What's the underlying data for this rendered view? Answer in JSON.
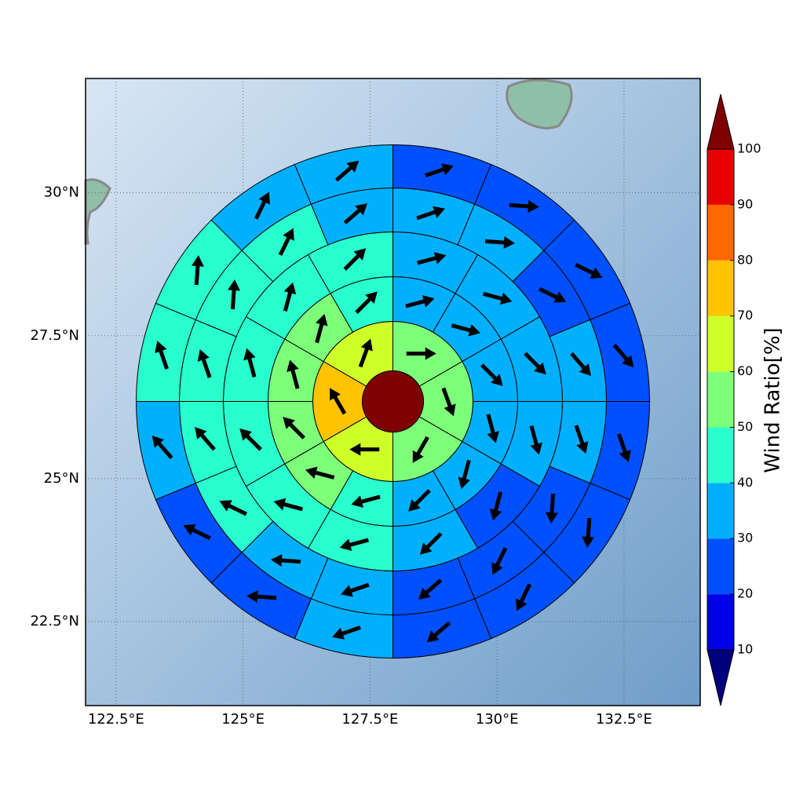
{
  "chart_data": {
    "type": "polar-sectors",
    "xlim": [
      121.9,
      134.0
    ],
    "ylim": [
      21.03,
      32.0
    ],
    "xticks": [
      {
        "value": 122.5,
        "label": "122.5°E"
      },
      {
        "value": 125,
        "label": "125°E"
      },
      {
        "value": 127.5,
        "label": "127.5°E"
      },
      {
        "value": 130,
        "label": "130°E"
      },
      {
        "value": 132.5,
        "label": "132.5°E"
      }
    ],
    "yticks": [
      {
        "value": 22.5,
        "label": "22.5°N"
      },
      {
        "value": 25,
        "label": "25°N"
      },
      {
        "value": 27.5,
        "label": "27.5°N"
      },
      {
        "value": 30,
        "label": "30°N"
      }
    ],
    "grid": true,
    "center_lon": 127.95,
    "center_lat": 26.35,
    "center_value": 105,
    "rings": [
      {
        "values": [
          55,
          55,
          55,
          65,
          75,
          65
        ],
        "directions": [
          90,
          160,
          210,
          270,
          330,
          20
        ]
      },
      {
        "values": [
          35,
          35,
          35,
          35,
          35,
          35,
          45,
          55,
          55,
          55,
          55,
          45
        ],
        "directions": [
          75,
          105,
          135,
          165,
          195,
          225,
          255,
          285,
          315,
          345,
          15,
          45
        ]
      },
      {
        "values": [
          35,
          35,
          35,
          35,
          25,
          35,
          45,
          45,
          45,
          45,
          45,
          45
        ],
        "directions": [
          75,
          105,
          135,
          165,
          195,
          225,
          255,
          285,
          315,
          345,
          15,
          45
        ]
      },
      {
        "values": [
          35,
          35,
          25,
          35,
          35,
          25,
          25,
          25,
          35,
          35,
          45,
          45,
          45,
          45,
          45,
          35
        ],
        "directions": [
          71,
          94,
          116,
          139,
          161,
          184,
          206,
          229,
          251,
          274,
          296,
          319,
          341,
          4,
          26,
          49
        ]
      },
      {
        "values": [
          25,
          25,
          25,
          25,
          25,
          25,
          25,
          25,
          35,
          25,
          25,
          35,
          45,
          45,
          35,
          35
        ],
        "directions": [
          71,
          94,
          116,
          139,
          161,
          184,
          206,
          229,
          251,
          274,
          296,
          319,
          341,
          4,
          26,
          49
        ]
      }
    ],
    "colorbar": {
      "label": "Wind Ratio[%]",
      "ticks": [
        10,
        20,
        30,
        40,
        50,
        60,
        70,
        80,
        90,
        100
      ],
      "colors": [
        "#00007f",
        "#0000e8",
        "#0050ff",
        "#00b0ff",
        "#29ffce",
        "#7dff7a",
        "#ceff29",
        "#ffc400",
        "#ff6800",
        "#e80000",
        "#7f0000"
      ]
    }
  }
}
